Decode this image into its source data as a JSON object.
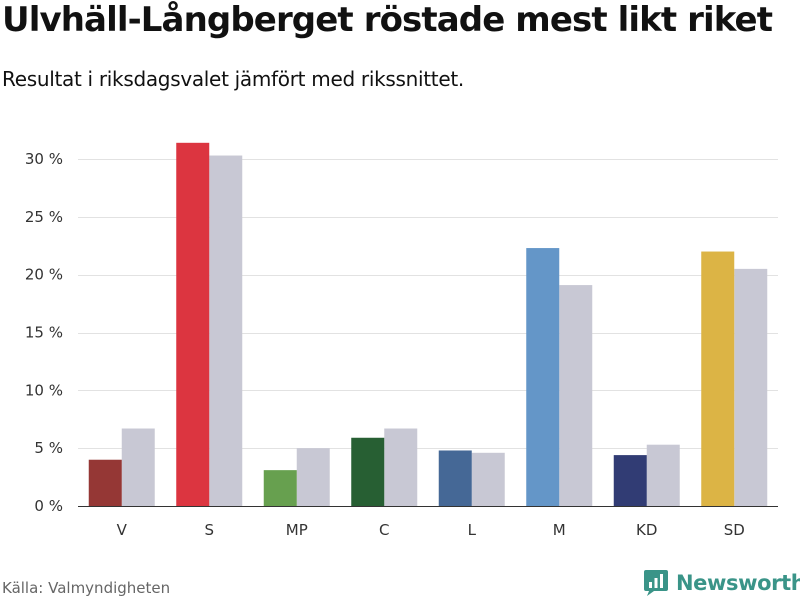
{
  "header": {
    "title": "Ulvhäll-Långberget röstade mest likt riket",
    "subtitle": "Resultat i riksdagsvalet jämfört med rikssnittet."
  },
  "footer": {
    "source": "Källa: Valmyndigheten",
    "brand": "Newsworthy",
    "brand_icon": "newsworthy-logo-icon",
    "brand_color": "#3a9488"
  },
  "chart_data": {
    "type": "bar",
    "categories": [
      "V",
      "S",
      "MP",
      "C",
      "L",
      "M",
      "KD",
      "SD"
    ],
    "series": [
      {
        "values": [
          4.0,
          31.4,
          3.1,
          5.9,
          4.8,
          22.3,
          4.4,
          22.0
        ],
        "colors": [
          "#953735",
          "#dc3540",
          "#67a04f",
          "#275f33",
          "#456896",
          "#6496c8",
          "#313c74",
          "#dcb445"
        ]
      },
      {
        "values": [
          6.7,
          30.3,
          5.0,
          6.7,
          4.6,
          19.1,
          5.3,
          20.5
        ],
        "color": "#c8c8d4"
      }
    ],
    "y_ticks": [
      "0 %",
      "5 %",
      "10 %",
      "15 %",
      "20 %",
      "25 %",
      "30 %"
    ],
    "y_tick_values": [
      0,
      5,
      10,
      15,
      20,
      25,
      30
    ],
    "ylim": [
      0,
      35
    ],
    "grid": true,
    "grid_color": "#e2e2e2",
    "xlabel": "",
    "ylabel": ""
  }
}
